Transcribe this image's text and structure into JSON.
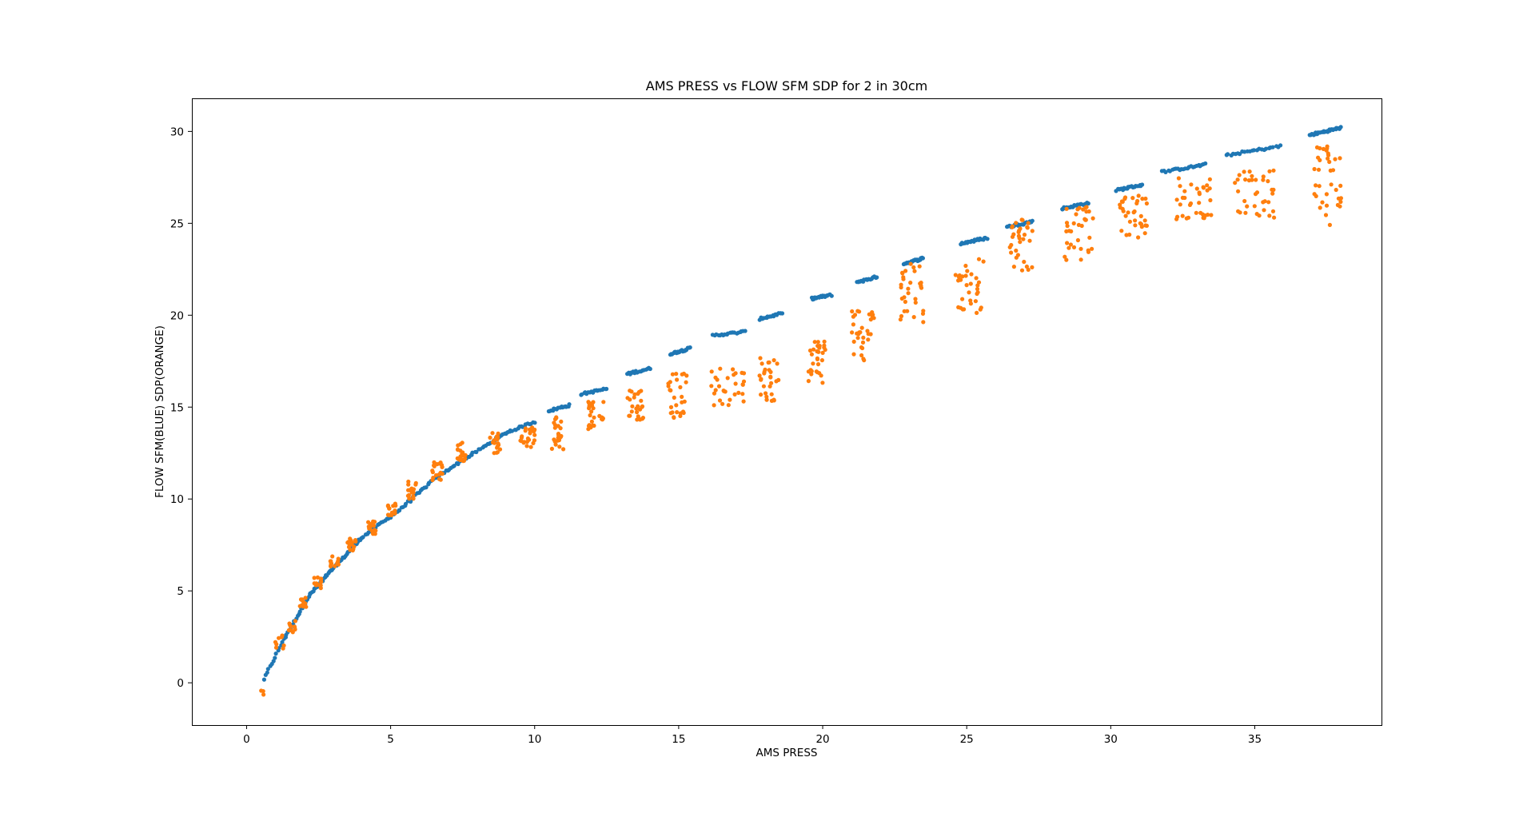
{
  "chart_data": {
    "type": "scatter",
    "title": "AMS PRESS vs FLOW SFM SDP for 2 in 30cm",
    "xlabel": "AMS PRESS",
    "ylabel": "FLOW SFM(BLUE) SDP(ORANGE)",
    "xlim": [
      -1.9,
      39.4
    ],
    "ylim": [
      -2.3,
      31.8
    ],
    "xticks": [
      0,
      5,
      10,
      15,
      20,
      25,
      30,
      35
    ],
    "yticks": [
      0,
      5,
      10,
      15,
      20,
      25,
      30
    ],
    "grid": false,
    "colors": {
      "blue": "#1f77b4",
      "orange": "#ff7f0e"
    },
    "model": {
      "blue": {
        "a": 0.26,
        "n": 0.0,
        "note": ""
      },
      "orange": {
        "a": 0.26,
        "n": 0.0,
        "note": ""
      }
    },
    "series": [
      {
        "color": "#1f77b4",
        "clusters": [
          {
            "x": [
              0.6,
              1.3
            ],
            "y": [
              0.2,
              2.4
            ],
            "count": 14
          },
          {
            "x": [
              1.3,
              2.2
            ],
            "y": [
              2.4,
              4.8
            ],
            "count": 22
          },
          {
            "x": [
              2.2,
              3.0
            ],
            "y": [
              4.8,
              6.2
            ],
            "count": 22
          },
          {
            "x": [
              3.0,
              4.0
            ],
            "y": [
              6.2,
              7.9
            ],
            "count": 22
          },
          {
            "x": [
              4.0,
              5.3
            ],
            "y": [
              7.9,
              9.4
            ],
            "count": 22
          },
          {
            "x": [
              5.3,
              6.6
            ],
            "y": [
              9.4,
              11.2
            ],
            "count": 22
          },
          {
            "x": [
              6.6,
              7.8
            ],
            "y": [
              11.2,
              12.4
            ],
            "count": 20
          },
          {
            "x": [
              7.8,
              9.0
            ],
            "y": [
              12.4,
              13.6
            ],
            "count": 20
          },
          {
            "x": [
              9.0,
              10.0
            ],
            "y": [
              13.6,
              14.2
            ],
            "count": 18
          },
          {
            "x": [
              10.5,
              11.2
            ],
            "y": [
              14.8,
              15.1
            ],
            "count": 18
          },
          {
            "x": [
              11.6,
              12.5
            ],
            "y": [
              15.7,
              16.0
            ],
            "count": 18
          },
          {
            "x": [
              13.2,
              14.0
            ],
            "y": [
              16.8,
              17.1
            ],
            "count": 18
          },
          {
            "x": [
              14.7,
              15.4
            ],
            "y": [
              17.9,
              18.2
            ],
            "count": 20
          },
          {
            "x": [
              16.2,
              17.3
            ],
            "y": [
              18.9,
              19.1
            ],
            "count": 20
          },
          {
            "x": [
              17.8,
              18.6
            ],
            "y": [
              19.8,
              20.1
            ],
            "count": 20
          },
          {
            "x": [
              19.6,
              20.3
            ],
            "y": [
              20.9,
              21.1
            ],
            "count": 20
          },
          {
            "x": [
              21.2,
              21.9
            ],
            "y": [
              21.8,
              22.1
            ],
            "count": 20
          },
          {
            "x": [
              22.8,
              23.5
            ],
            "y": [
              22.8,
              23.1
            ],
            "count": 20
          },
          {
            "x": [
              24.8,
              25.7
            ],
            "y": [
              23.9,
              24.2
            ],
            "count": 22
          },
          {
            "x": [
              26.4,
              27.3
            ],
            "y": [
              24.8,
              25.1
            ],
            "count": 22
          },
          {
            "x": [
              28.3,
              29.2
            ],
            "y": [
              25.8,
              26.1
            ],
            "count": 22
          },
          {
            "x": [
              30.2,
              31.1
            ],
            "y": [
              26.8,
              27.1
            ],
            "count": 22
          },
          {
            "x": [
              31.8,
              33.3
            ],
            "y": [
              27.8,
              28.2
            ],
            "count": 24
          },
          {
            "x": [
              34.0,
              35.9
            ],
            "y": [
              28.7,
              29.2
            ],
            "count": 24
          },
          {
            "x": [
              36.9,
              38.0
            ],
            "y": [
              29.8,
              30.2
            ],
            "count": 30
          }
        ]
      },
      {
        "color": "#ff7f0e",
        "clusters": [
          {
            "x": [
              0.5,
              0.7
            ],
            "y": [
              -0.8,
              -0.4
            ],
            "count": 3
          },
          {
            "x": [
              1.0,
              1.4
            ],
            "y": [
              1.8,
              2.6
            ],
            "count": 8
          },
          {
            "x": [
              1.4,
              1.7
            ],
            "y": [
              2.7,
              3.4
            ],
            "count": 10
          },
          {
            "x": [
              1.8,
              2.1
            ],
            "y": [
              4.1,
              4.7
            ],
            "count": 10
          },
          {
            "x": [
              2.3,
              2.6
            ],
            "y": [
              5.1,
              5.8
            ],
            "count": 12
          },
          {
            "x": [
              2.9,
              3.2
            ],
            "y": [
              6.3,
              6.9
            ],
            "count": 12
          },
          {
            "x": [
              3.5,
              3.8
            ],
            "y": [
              7.2,
              7.9
            ],
            "count": 14
          },
          {
            "x": [
              4.2,
              4.5
            ],
            "y": [
              8.1,
              8.8
            ],
            "count": 16
          },
          {
            "x": [
              4.9,
              5.2
            ],
            "y": [
              9.1,
              9.8
            ],
            "count": 16
          },
          {
            "x": [
              5.6,
              5.9
            ],
            "y": [
              10.0,
              11.0
            ],
            "count": 18
          },
          {
            "x": [
              6.4,
              6.8
            ],
            "y": [
              11.0,
              12.0
            ],
            "count": 20
          },
          {
            "x": [
              7.3,
              7.6
            ],
            "y": [
              12.0,
              13.1
            ],
            "count": 20
          },
          {
            "x": [
              8.4,
              8.8
            ],
            "y": [
              12.5,
              13.7
            ],
            "count": 22
          },
          {
            "x": [
              9.5,
              10.0
            ],
            "y": [
              12.8,
              14.0
            ],
            "count": 24
          },
          {
            "x": [
              10.6,
              11.0
            ],
            "y": [
              12.7,
              14.6
            ],
            "count": 24
          },
          {
            "x": [
              11.8,
              12.4
            ],
            "y": [
              13.8,
              15.5
            ],
            "count": 26
          },
          {
            "x": [
              13.2,
              13.8
            ],
            "y": [
              14.3,
              15.9
            ],
            "count": 26
          },
          {
            "x": [
              14.6,
              15.3
            ],
            "y": [
              14.4,
              16.9
            ],
            "count": 28
          },
          {
            "x": [
              16.1,
              17.3
            ],
            "y": [
              15.1,
              17.2
            ],
            "count": 30
          },
          {
            "x": [
              17.8,
              18.5
            ],
            "y": [
              15.3,
              17.7
            ],
            "count": 30
          },
          {
            "x": [
              19.5,
              20.1
            ],
            "y": [
              16.2,
              18.7
            ],
            "count": 30
          },
          {
            "x": [
              21.0,
              21.8
            ],
            "y": [
              17.5,
              20.6
            ],
            "count": 32
          },
          {
            "x": [
              22.7,
              23.5
            ],
            "y": [
              19.3,
              22.8
            ],
            "count": 32
          },
          {
            "x": [
              24.6,
              25.6
            ],
            "y": [
              20.0,
              23.5
            ],
            "count": 32
          },
          {
            "x": [
              26.5,
              27.3
            ],
            "y": [
              22.4,
              25.2
            ],
            "count": 32
          },
          {
            "x": [
              28.4,
              29.4
            ],
            "y": [
              23.0,
              25.9
            ],
            "count": 34
          },
          {
            "x": [
              30.3,
              31.3
            ],
            "y": [
              24.1,
              26.5
            ],
            "count": 34
          },
          {
            "x": [
              32.2,
              33.5
            ],
            "y": [
              25.2,
              27.5
            ],
            "count": 34
          },
          {
            "x": [
              34.3,
              35.7
            ],
            "y": [
              25.3,
              27.9
            ],
            "count": 36
          },
          {
            "x": [
              37.0,
              38.0
            ],
            "y": [
              24.9,
              29.2
            ],
            "count": 36
          }
        ]
      }
    ]
  }
}
